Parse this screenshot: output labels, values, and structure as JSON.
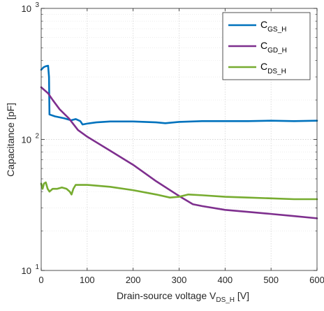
{
  "chart_data": {
    "type": "line",
    "title": "",
    "xlabel": {
      "main": "Drain-source  voltage  V",
      "sub": "DS_H",
      "unit": " [V]"
    },
    "ylabel": "Capacitance [pF]",
    "xlim": [
      0,
      600
    ],
    "ylim": [
      10,
      1000
    ],
    "yscale": "log",
    "grid": true,
    "legend_position": "top-right",
    "x_ticks": [
      "0",
      "100",
      "200",
      "300",
      "400",
      "500",
      "600"
    ],
    "y_ticks": [
      {
        "base": "10",
        "exp": "1"
      },
      {
        "base": "10",
        "exp": "2"
      },
      {
        "base": "10",
        "exp": "3"
      }
    ],
    "series": [
      {
        "label_main": "C",
        "label_sub": "GS_H",
        "color": "#0072BD",
        "points": [
          [
            0,
            340
          ],
          [
            5,
            355
          ],
          [
            10,
            362
          ],
          [
            15,
            365
          ],
          [
            17,
            300
          ],
          [
            18,
            155
          ],
          [
            30,
            150
          ],
          [
            50,
            145
          ],
          [
            65,
            140
          ],
          [
            75,
            143
          ],
          [
            85,
            138
          ],
          [
            90,
            130
          ],
          [
            100,
            132
          ],
          [
            120,
            135
          ],
          [
            150,
            137
          ],
          [
            200,
            137
          ],
          [
            250,
            135
          ],
          [
            270,
            133
          ],
          [
            300,
            136
          ],
          [
            350,
            138
          ],
          [
            400,
            138
          ],
          [
            450,
            138
          ],
          [
            500,
            139
          ],
          [
            550,
            138
          ],
          [
            600,
            139
          ]
        ]
      },
      {
        "label_main": "C",
        "label_sub": "GD_H",
        "color": "#7E2F8E",
        "points": [
          [
            0,
            250
          ],
          [
            15,
            225
          ],
          [
            25,
            200
          ],
          [
            40,
            170
          ],
          [
            60,
            145
          ],
          [
            80,
            118
          ],
          [
            100,
            105
          ],
          [
            150,
            82
          ],
          [
            200,
            64
          ],
          [
            250,
            48
          ],
          [
            300,
            37
          ],
          [
            330,
            32
          ],
          [
            350,
            31
          ],
          [
            400,
            29
          ],
          [
            450,
            28
          ],
          [
            500,
            27
          ],
          [
            550,
            26
          ],
          [
            600,
            25
          ]
        ]
      },
      {
        "label_main": "C",
        "label_sub": "DS_H",
        "color": "#77AC30",
        "points": [
          [
            0,
            46
          ],
          [
            3,
            42
          ],
          [
            6,
            46
          ],
          [
            10,
            47
          ],
          [
            14,
            42
          ],
          [
            18,
            40
          ],
          [
            25,
            42
          ],
          [
            35,
            42
          ],
          [
            45,
            43
          ],
          [
            55,
            42
          ],
          [
            62,
            40
          ],
          [
            66,
            38
          ],
          [
            70,
            42
          ],
          [
            75,
            45
          ],
          [
            85,
            45
          ],
          [
            100,
            45
          ],
          [
            150,
            43.5
          ],
          [
            200,
            41
          ],
          [
            250,
            38
          ],
          [
            280,
            36
          ],
          [
            300,
            36.5
          ],
          [
            320,
            38
          ],
          [
            350,
            37.5
          ],
          [
            400,
            36.5
          ],
          [
            450,
            36
          ],
          [
            500,
            35.5
          ],
          [
            550,
            35
          ],
          [
            600,
            35
          ]
        ]
      }
    ]
  }
}
